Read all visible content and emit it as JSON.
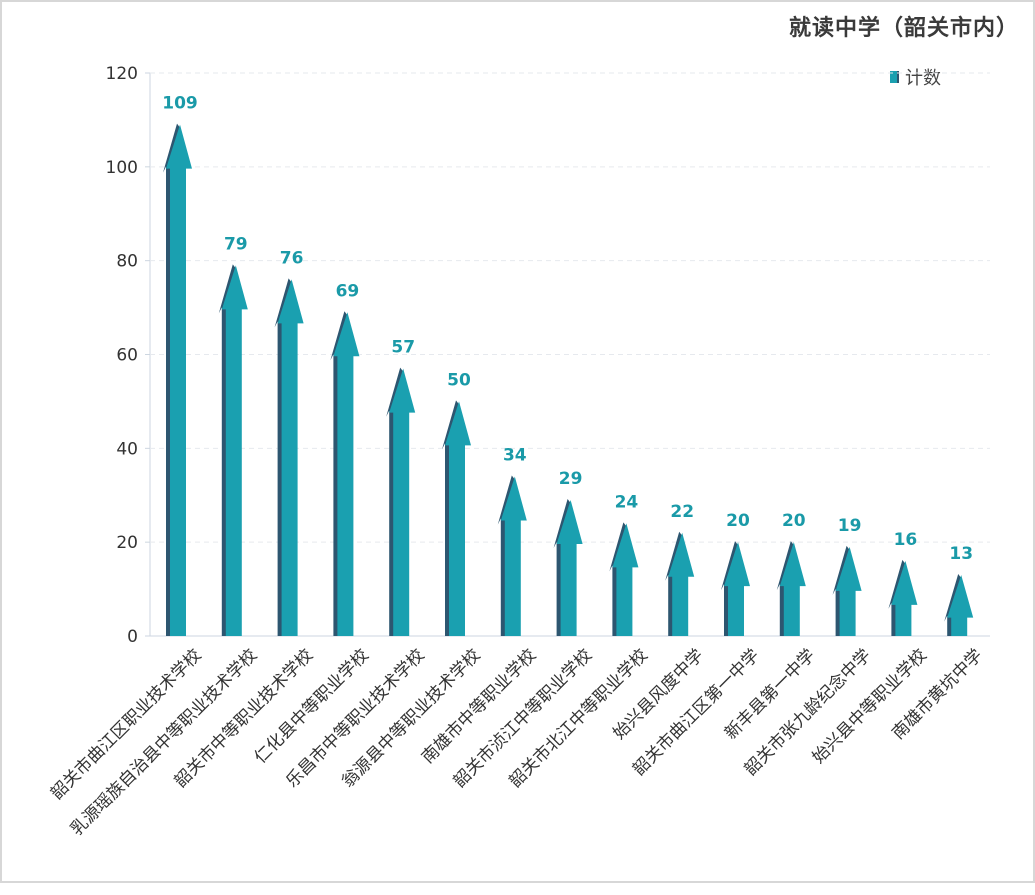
{
  "chart_data": {
    "type": "bar",
    "title": "就读中学（韶关市内）",
    "legend": {
      "position": "top-right",
      "entries": [
        "计数"
      ]
    },
    "series": [
      {
        "name": "计数",
        "values": [
          109,
          79,
          76,
          69,
          57,
          50,
          34,
          29,
          24,
          22,
          20,
          20,
          19,
          16,
          13
        ]
      }
    ],
    "categories": [
      "韶关市曲江区职业技术学校",
      "乳源瑶族自治县中等职业技术学校",
      "韶关市中等职业技术学校",
      "仁化县中等职业学校",
      "乐昌市中等职业技术学校",
      "翁源县中等职业技术学校",
      "南雄市中等职业学校",
      "韶关市浈江中等职业学校",
      "韶关市北江中等职业学校",
      "始兴县风度中学",
      "韶关市曲江区第一中学",
      "新丰县第一中学",
      "韶关市张九龄纪念中学",
      "始兴县中等职业学校",
      "南雄市黄坑中学"
    ],
    "y_ticks": [
      "0",
      "20",
      "40",
      "60",
      "80",
      "100",
      "120"
    ],
    "ylim": [
      0,
      120
    ],
    "grid": true,
    "colors": {
      "bar": "#1aa0b0",
      "bar_shadow": "#2d5670",
      "label": "#1a9aa8"
    }
  }
}
